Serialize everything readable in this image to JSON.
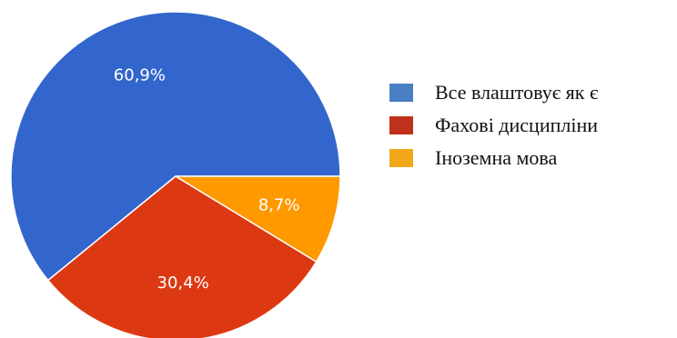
{
  "chart_data": {
    "type": "pie",
    "slices": [
      {
        "label": "Все влаштовує як є",
        "value": 60.9,
        "display": "60,9%",
        "color": "#3366cc"
      },
      {
        "label": "Фахові дисципліни",
        "value": 30.4,
        "display": "30,4%",
        "color": "#dc3912"
      },
      {
        "label": "Іноземна мова",
        "value": 8.7,
        "display": "8,7%",
        "color": "#ff9900"
      }
    ],
    "legend_swatch_colors": [
      "#4a7fc1",
      "#c0311b",
      "#f0a81a"
    ],
    "start_angle_deg": 0,
    "direction": "counterclockwise",
    "legend_position": "right"
  }
}
